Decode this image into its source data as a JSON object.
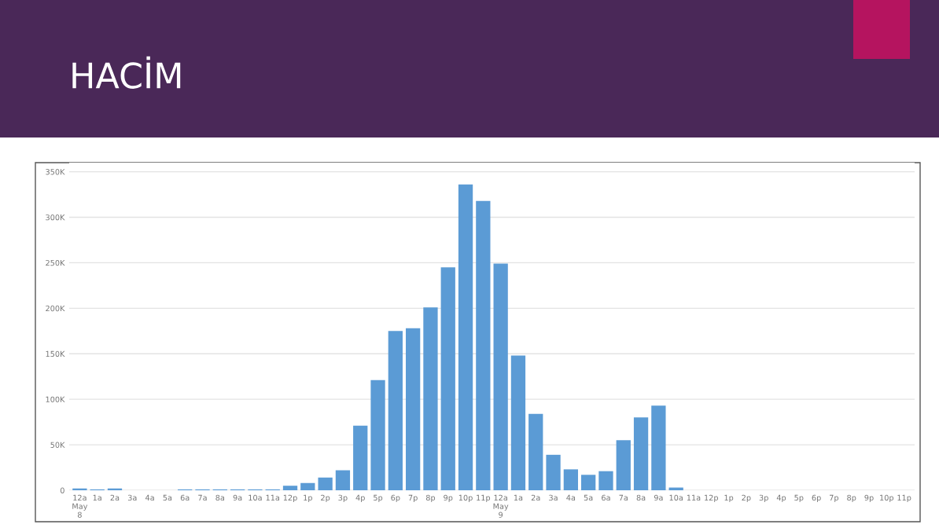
{
  "chart_data": {
    "type": "bar",
    "title": "HACİM",
    "categories": [
      "12a\nMay\n8",
      "1a",
      "2a",
      "3a",
      "4a",
      "5a",
      "6a",
      "7a",
      "8a",
      "9a",
      "10a",
      "11a",
      "12p",
      "1p",
      "2p",
      "3p",
      "4p",
      "5p",
      "6p",
      "7p",
      "8p",
      "9p",
      "10p",
      "11p",
      "12a\nMay\n9",
      "1a",
      "2a",
      "3a",
      "4a",
      "5a",
      "6a",
      "7a",
      "8a",
      "9a",
      "10a",
      "11a",
      "12p",
      "1p",
      "2p",
      "3p",
      "4p",
      "5p",
      "6p",
      "7p",
      "8p",
      "9p",
      "10p",
      "11p"
    ],
    "values": [
      2000,
      1000,
      2000,
      0,
      0,
      0,
      1000,
      1000,
      1000,
      1000,
      1000,
      1000,
      5000,
      8000,
      14000,
      22000,
      71000,
      121000,
      175000,
      178000,
      201000,
      245000,
      336000,
      318000,
      249000,
      148000,
      84000,
      39000,
      23000,
      17000,
      21000,
      55000,
      80000,
      93000,
      3000,
      0,
      0,
      0,
      0,
      0,
      0,
      0,
      0,
      0,
      0,
      0,
      0,
      0
    ],
    "color": "#5b9bd5",
    "ylim": [
      0,
      360000
    ],
    "yticks": [
      0,
      {
        "value": 50000,
        "label": "50K"
      },
      {
        "value": 100000,
        "label": "100K"
      },
      {
        "value": 150000,
        "label": "150K"
      },
      {
        "value": 200000,
        "label": "200K"
      },
      {
        "value": 250000,
        "label": "250K"
      },
      {
        "value": 300000,
        "label": "300K"
      },
      {
        "value": 350000,
        "label": "350K"
      }
    ],
    "grid": "y"
  }
}
